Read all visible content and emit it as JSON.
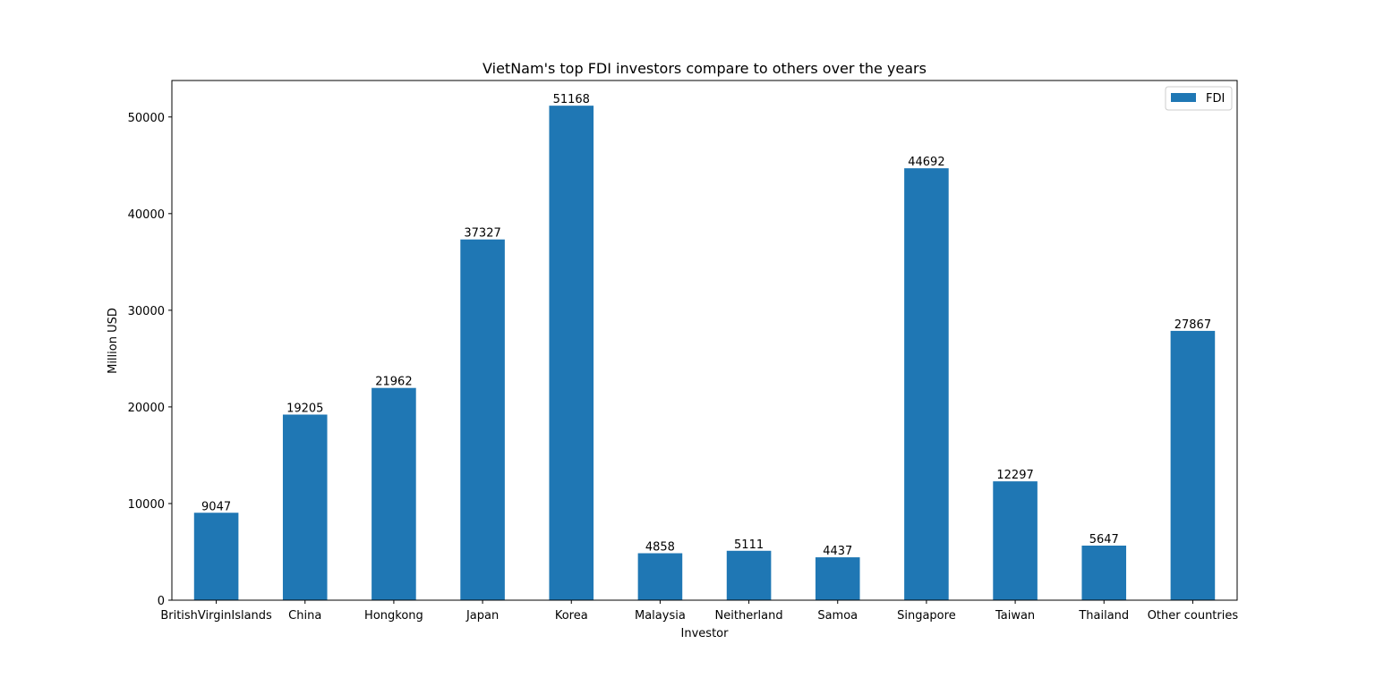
{
  "chart_data": {
    "type": "bar",
    "title": "VietNam's top FDI investors compare to others over the years",
    "xlabel": "Investor",
    "ylabel": "Million USD",
    "categories": [
      "BritishVirginIslands",
      "China",
      "Hongkong",
      "Japan",
      "Korea",
      "Malaysia",
      "Neitherland",
      "Samoa",
      "Singapore",
      "Taiwan",
      "Thailand",
      "Other countries"
    ],
    "series": [
      {
        "name": "FDI",
        "color": "#1f77b4",
        "values": [
          9047,
          19205,
          21962,
          37327,
          51168,
          4858,
          5111,
          4437,
          44692,
          12297,
          5647,
          27867
        ]
      }
    ],
    "ylim": [
      0,
      53774
    ],
    "yticks": [
      0,
      10000,
      20000,
      30000,
      40000,
      50000
    ],
    "legend_position": "top-right",
    "grid": false
  }
}
